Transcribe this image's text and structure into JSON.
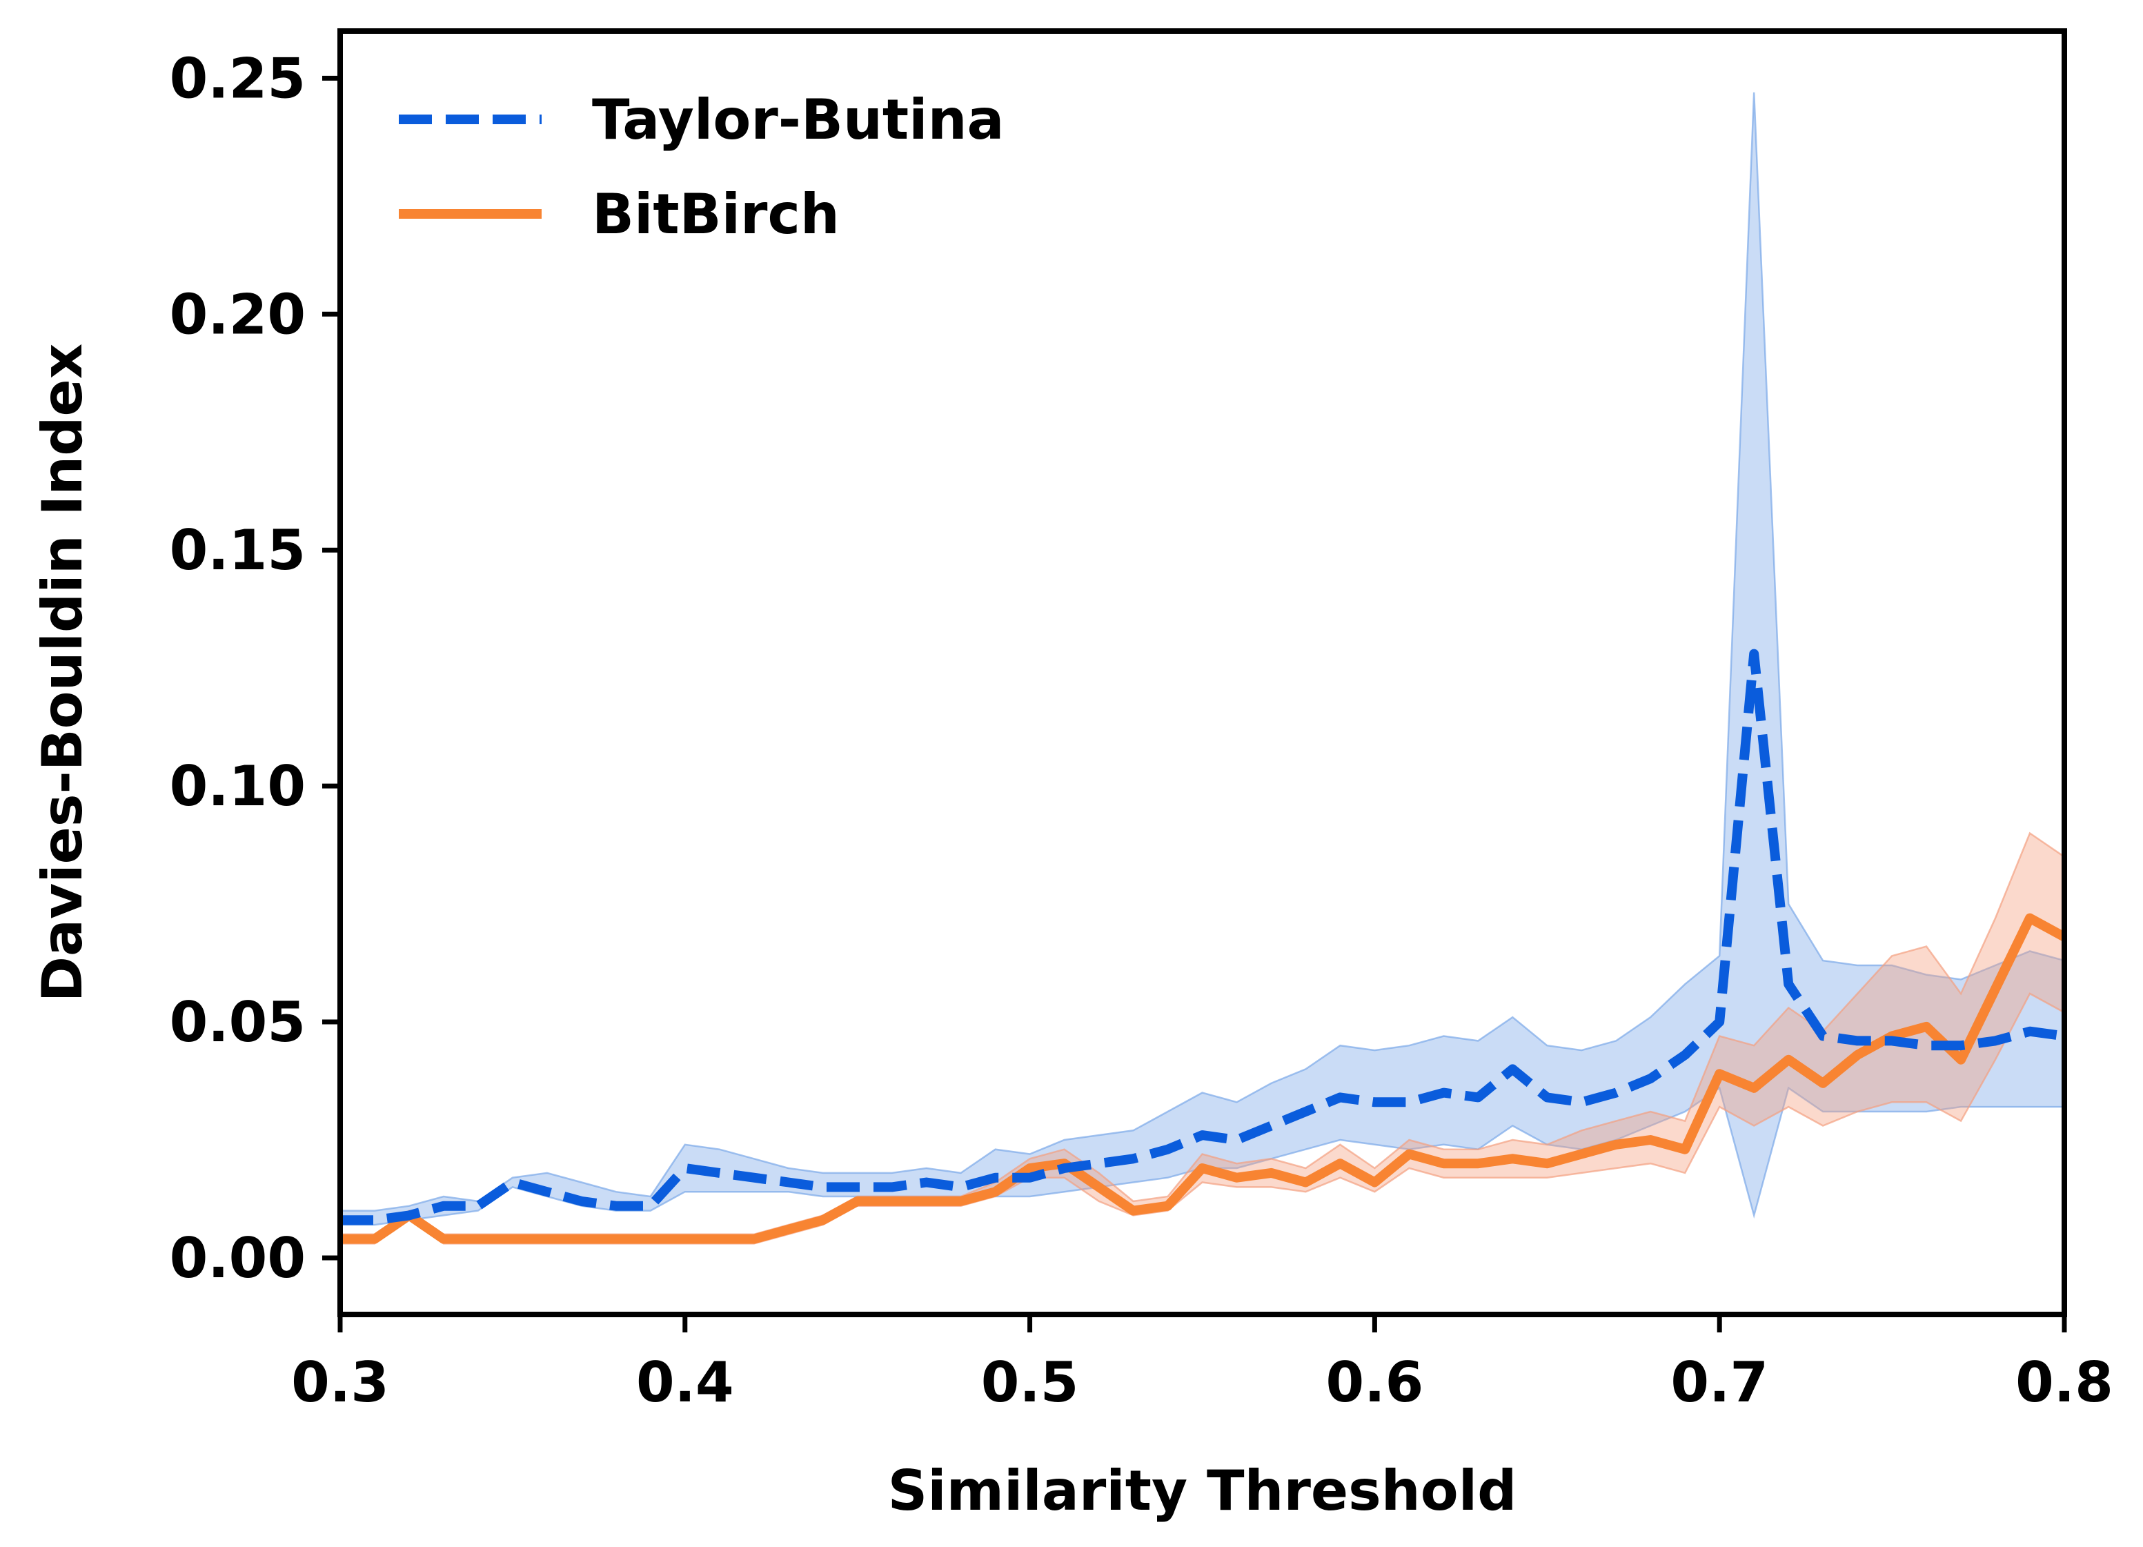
{
  "chart_data": {
    "type": "line",
    "title": "",
    "xlabel": "Similarity Threshold",
    "ylabel": "Davies-Bouldin Index",
    "xlim": [
      0.3,
      0.8
    ],
    "ylim": [
      -0.012,
      0.26
    ],
    "xticks": [
      {
        "value": 0.3,
        "label": "0.3"
      },
      {
        "value": 0.4,
        "label": "0.4"
      },
      {
        "value": 0.5,
        "label": "0.5"
      },
      {
        "value": 0.6,
        "label": "0.6"
      },
      {
        "value": 0.7,
        "label": "0.7"
      },
      {
        "value": 0.8,
        "label": "0.8"
      }
    ],
    "yticks": [
      {
        "value": 0.0,
        "label": "0.00"
      },
      {
        "value": 0.05,
        "label": "0.05"
      },
      {
        "value": 0.1,
        "label": "0.10"
      },
      {
        "value": 0.15,
        "label": "0.15"
      },
      {
        "value": 0.2,
        "label": "0.20"
      },
      {
        "value": 0.25,
        "label": "0.25"
      }
    ],
    "grid": false,
    "legend_position": "top-left",
    "x": [
      0.3,
      0.31,
      0.32,
      0.33,
      0.34,
      0.35,
      0.36,
      0.37,
      0.38,
      0.39,
      0.4,
      0.41,
      0.42,
      0.43,
      0.44,
      0.45,
      0.46,
      0.47,
      0.48,
      0.49,
      0.5,
      0.51,
      0.52,
      0.53,
      0.54,
      0.55,
      0.56,
      0.57,
      0.58,
      0.59,
      0.6,
      0.61,
      0.62,
      0.63,
      0.64,
      0.65,
      0.66,
      0.67,
      0.68,
      0.69,
      0.7,
      0.71,
      0.72,
      0.73,
      0.74,
      0.75,
      0.76,
      0.77,
      0.78,
      0.79,
      0.8
    ],
    "series": [
      {
        "name": "Taylor-Butina",
        "color": "#0a5cdc",
        "band_color": "#7aa8e8",
        "line_style": "dashed",
        "values": [
          0.008,
          0.008,
          0.009,
          0.011,
          0.011,
          0.016,
          0.014,
          0.012,
          0.011,
          0.011,
          0.019,
          0.018,
          0.017,
          0.016,
          0.015,
          0.015,
          0.015,
          0.016,
          0.015,
          0.017,
          0.017,
          0.019,
          0.02,
          0.021,
          0.023,
          0.026,
          0.025,
          0.028,
          0.031,
          0.034,
          0.033,
          0.033,
          0.035,
          0.034,
          0.04,
          0.034,
          0.033,
          0.035,
          0.038,
          0.043,
          0.05,
          0.128,
          0.058,
          0.047,
          0.046,
          0.046,
          0.045,
          0.045,
          0.046,
          0.048,
          0.047
        ],
        "lower": [
          0.007,
          0.007,
          0.008,
          0.009,
          0.01,
          0.015,
          0.013,
          0.011,
          0.01,
          0.01,
          0.014,
          0.014,
          0.014,
          0.014,
          0.013,
          0.013,
          0.013,
          0.013,
          0.013,
          0.013,
          0.013,
          0.014,
          0.015,
          0.016,
          0.017,
          0.019,
          0.019,
          0.021,
          0.023,
          0.025,
          0.024,
          0.023,
          0.024,
          0.023,
          0.028,
          0.024,
          0.023,
          0.025,
          0.028,
          0.031,
          0.036,
          0.009,
          0.036,
          0.031,
          0.031,
          0.031,
          0.031,
          0.032,
          0.032,
          0.032,
          0.032
        ],
        "upper": [
          0.01,
          0.01,
          0.011,
          0.013,
          0.012,
          0.017,
          0.018,
          0.016,
          0.014,
          0.013,
          0.024,
          0.023,
          0.021,
          0.019,
          0.018,
          0.018,
          0.018,
          0.019,
          0.018,
          0.023,
          0.022,
          0.025,
          0.026,
          0.027,
          0.031,
          0.035,
          0.033,
          0.037,
          0.04,
          0.045,
          0.044,
          0.045,
          0.047,
          0.046,
          0.051,
          0.045,
          0.044,
          0.046,
          0.051,
          0.058,
          0.064,
          0.247,
          0.075,
          0.063,
          0.062,
          0.062,
          0.06,
          0.059,
          0.062,
          0.065,
          0.063
        ]
      },
      {
        "name": "BitBirch",
        "color": "#f88432",
        "band_color": "#f4a080",
        "line_style": "solid",
        "values": [
          0.004,
          0.004,
          0.009,
          0.004,
          0.004,
          0.004,
          0.004,
          0.004,
          0.004,
          0.004,
          0.004,
          0.004,
          0.004,
          0.006,
          0.008,
          0.012,
          0.012,
          0.012,
          0.012,
          0.014,
          0.019,
          0.02,
          0.015,
          0.01,
          0.011,
          0.019,
          0.017,
          0.018,
          0.016,
          0.02,
          0.016,
          0.022,
          0.02,
          0.02,
          0.021,
          0.02,
          0.022,
          0.024,
          0.025,
          0.023,
          0.039,
          0.036,
          0.042,
          0.037,
          0.043,
          0.047,
          0.049,
          0.042,
          0.057,
          0.072,
          0.068
        ],
        "lower": [
          0.003,
          0.003,
          0.008,
          0.003,
          0.003,
          0.003,
          0.003,
          0.003,
          0.003,
          0.003,
          0.003,
          0.003,
          0.003,
          0.005,
          0.007,
          0.011,
          0.011,
          0.011,
          0.011,
          0.013,
          0.017,
          0.017,
          0.012,
          0.009,
          0.01,
          0.016,
          0.015,
          0.015,
          0.014,
          0.017,
          0.014,
          0.019,
          0.017,
          0.017,
          0.017,
          0.017,
          0.018,
          0.019,
          0.02,
          0.018,
          0.032,
          0.028,
          0.032,
          0.028,
          0.031,
          0.033,
          0.033,
          0.029,
          0.042,
          0.056,
          0.052
        ],
        "upper": [
          0.005,
          0.005,
          0.01,
          0.005,
          0.005,
          0.005,
          0.005,
          0.005,
          0.005,
          0.005,
          0.005,
          0.005,
          0.005,
          0.007,
          0.009,
          0.013,
          0.013,
          0.013,
          0.013,
          0.016,
          0.021,
          0.023,
          0.018,
          0.012,
          0.013,
          0.022,
          0.02,
          0.021,
          0.019,
          0.024,
          0.019,
          0.025,
          0.023,
          0.023,
          0.025,
          0.024,
          0.027,
          0.029,
          0.031,
          0.029,
          0.047,
          0.045,
          0.053,
          0.048,
          0.056,
          0.064,
          0.066,
          0.056,
          0.072,
          0.09,
          0.085
        ]
      }
    ]
  }
}
